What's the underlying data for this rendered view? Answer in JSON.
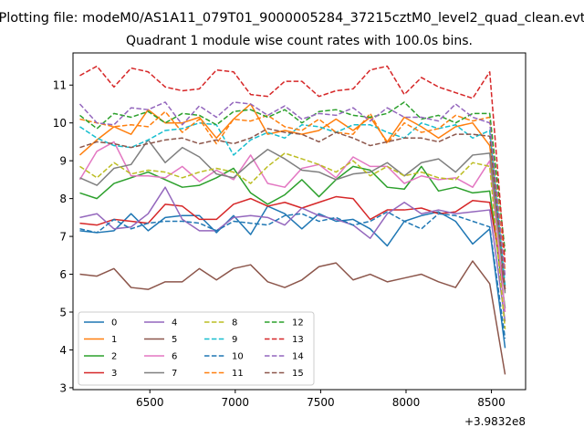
{
  "figure": {
    "suptitle": "Plotting file: modeM0/AS1A11_079T01_9000005284_37215cztM0_level2_quad_clean.evt",
    "x_offset_label": "+3.9832e8"
  },
  "chart_data": {
    "type": "line",
    "title": "Quadrant 1 module wise count rates with 100.0s bins.",
    "xlabel": "",
    "ylabel": "",
    "x_offset": 398320000,
    "xlim": [
      6050,
      8700
    ],
    "ylim": [
      2.95,
      11.85
    ],
    "xticks": [
      6000,
      6500,
      7000,
      7500,
      8000,
      8500
    ],
    "xtick_labels": [
      "6000",
      "6500",
      "7000",
      "7500",
      "8000",
      "8500"
    ],
    "yticks": [
      3,
      4,
      5,
      6,
      7,
      8,
      9,
      10,
      11
    ],
    "ytick_labels": [
      "3",
      "4",
      "5",
      "6",
      "7",
      "8",
      "9",
      "10",
      "11"
    ],
    "grid": false,
    "legend": {
      "position": "lower-left",
      "columns": 4
    },
    "x": [
      6090,
      6190,
      6290,
      6390,
      6490,
      6590,
      6690,
      6790,
      6890,
      6990,
      7090,
      7190,
      7290,
      7390,
      7490,
      7590,
      7690,
      7790,
      7890,
      7990,
      8090,
      8190,
      8290,
      8390,
      8490,
      8580
    ],
    "series": [
      {
        "name": "0",
        "color": "#1f77b4",
        "dash": "solid",
        "values": [
          7.15,
          7.1,
          7.15,
          7.6,
          7.15,
          7.5,
          7.55,
          7.55,
          7.1,
          7.55,
          7.05,
          7.8,
          7.6,
          7.2,
          7.6,
          7.4,
          7.45,
          7.2,
          6.75,
          7.4,
          7.55,
          7.65,
          7.4,
          6.8,
          7.2,
          4.05
        ]
      },
      {
        "name": "1",
        "color": "#ff7f0e",
        "dash": "solid",
        "values": [
          9.15,
          9.55,
          9.9,
          9.7,
          10.35,
          10.0,
          10.0,
          10.15,
          9.6,
          10.1,
          10.5,
          9.7,
          9.8,
          9.7,
          9.8,
          10.1,
          9.8,
          10.15,
          9.5,
          10.15,
          9.9,
          9.6,
          9.9,
          10.0,
          9.4,
          5.6
        ]
      },
      {
        "name": "2",
        "color": "#2ca02c",
        "dash": "solid",
        "values": [
          8.15,
          8.0,
          8.4,
          8.55,
          8.7,
          8.5,
          8.3,
          8.35,
          8.55,
          8.8,
          8.15,
          7.85,
          8.1,
          8.5,
          8.05,
          8.5,
          8.85,
          8.75,
          8.3,
          8.25,
          8.85,
          8.2,
          8.3,
          8.15,
          8.2,
          5.1
        ]
      },
      {
        "name": "3",
        "color": "#d62728",
        "dash": "solid",
        "values": [
          7.35,
          7.3,
          7.45,
          7.4,
          7.35,
          7.85,
          7.8,
          7.45,
          7.45,
          7.85,
          8.0,
          7.8,
          7.9,
          7.75,
          7.9,
          8.05,
          8.0,
          7.45,
          7.7,
          7.7,
          7.75,
          7.6,
          7.65,
          7.95,
          7.9,
          5.55
        ]
      },
      {
        "name": "4",
        "color": "#9467bd",
        "dash": "solid",
        "values": [
          7.5,
          7.6,
          7.2,
          7.25,
          7.6,
          8.3,
          7.45,
          7.15,
          7.15,
          7.5,
          7.55,
          7.5,
          7.3,
          7.75,
          7.55,
          7.45,
          7.3,
          6.95,
          7.6,
          7.9,
          7.6,
          7.7,
          7.6,
          7.65,
          7.7,
          4.75
        ]
      },
      {
        "name": "5",
        "color": "#8c564b",
        "dash": "solid",
        "values": [
          6.0,
          5.95,
          6.15,
          5.65,
          5.6,
          5.8,
          5.8,
          6.15,
          5.85,
          6.15,
          6.25,
          5.8,
          5.65,
          5.85,
          6.2,
          6.3,
          5.85,
          6.0,
          5.8,
          5.9,
          6.0,
          5.8,
          5.65,
          6.35,
          5.75,
          3.35
        ]
      },
      {
        "name": "6",
        "color": "#e377c2",
        "dash": "solid",
        "values": [
          8.5,
          9.25,
          9.5,
          8.6,
          8.6,
          8.55,
          8.85,
          8.45,
          8.75,
          8.5,
          9.15,
          8.4,
          8.3,
          8.8,
          8.9,
          8.55,
          9.1,
          8.85,
          8.85,
          8.4,
          8.6,
          8.5,
          8.55,
          8.3,
          9.0,
          5.0
        ]
      },
      {
        "name": "7",
        "color": "#7f7f7f",
        "dash": "solid",
        "values": [
          8.55,
          8.35,
          8.8,
          8.9,
          9.55,
          8.95,
          9.35,
          9.1,
          8.65,
          8.55,
          8.95,
          9.3,
          9.05,
          8.75,
          8.7,
          8.5,
          8.65,
          8.7,
          8.95,
          8.6,
          8.95,
          9.05,
          8.7,
          9.15,
          9.2,
          5.5
        ]
      },
      {
        "name": "8",
        "color": "#bcbd22",
        "dash": "dashed",
        "values": [
          8.85,
          8.55,
          8.95,
          8.65,
          8.75,
          8.7,
          8.55,
          8.7,
          8.8,
          8.7,
          8.4,
          8.85,
          9.2,
          9.05,
          8.9,
          8.7,
          9.0,
          8.6,
          8.85,
          8.6,
          8.7,
          8.55,
          8.5,
          8.95,
          8.85,
          4.55
        ]
      },
      {
        "name": "9",
        "color": "#17becf",
        "dash": "dashed",
        "values": [
          9.9,
          9.6,
          9.4,
          9.35,
          9.55,
          9.8,
          9.85,
          10.0,
          9.95,
          9.15,
          9.55,
          9.75,
          9.6,
          9.95,
          9.9,
          9.75,
          9.95,
          9.95,
          9.75,
          9.6,
          10.0,
          9.85,
          9.95,
          9.6,
          9.8,
          5.7
        ]
      },
      {
        "name": "10",
        "color": "#1f77b4",
        "dash": "dashed",
        "values": [
          7.2,
          7.1,
          7.45,
          7.2,
          7.35,
          7.4,
          7.4,
          7.35,
          7.15,
          7.4,
          7.35,
          7.3,
          7.55,
          7.6,
          7.4,
          7.5,
          7.3,
          7.4,
          7.65,
          7.4,
          7.2,
          7.6,
          7.55,
          7.4,
          7.25,
          4.3
        ]
      },
      {
        "name": "11",
        "color": "#ff7f0e",
        "dash": "dashed",
        "values": [
          10.1,
          10.0,
          9.9,
          9.95,
          9.9,
          10.3,
          9.75,
          10.1,
          9.45,
          10.1,
          10.05,
          10.2,
          9.9,
          9.8,
          10.1,
          9.75,
          9.7,
          10.25,
          9.45,
          10.0,
          9.75,
          9.85,
          10.2,
          10.05,
          10.15,
          6.1
        ]
      },
      {
        "name": "12",
        "color": "#2ca02c",
        "dash": "dashed",
        "values": [
          10.2,
          9.85,
          10.25,
          10.15,
          10.3,
          10.0,
          10.25,
          10.2,
          9.95,
          10.3,
          10.35,
          10.15,
          10.35,
          10.0,
          10.3,
          10.35,
          10.2,
          10.15,
          10.25,
          10.55,
          10.1,
          10.2,
          10.0,
          10.25,
          10.25,
          6.6
        ]
      },
      {
        "name": "13",
        "color": "#d62728",
        "dash": "dashed",
        "values": [
          11.25,
          11.5,
          10.95,
          11.45,
          11.35,
          10.95,
          10.85,
          10.9,
          11.4,
          11.35,
          10.75,
          10.7,
          11.1,
          11.1,
          10.7,
          10.85,
          10.9,
          11.4,
          11.5,
          10.75,
          11.2,
          10.95,
          10.8,
          10.65,
          11.35,
          6.3
        ]
      },
      {
        "name": "14",
        "color": "#9467bd",
        "dash": "dashed",
        "values": [
          10.5,
          10.0,
          9.95,
          10.4,
          10.35,
          10.55,
          9.95,
          10.45,
          10.15,
          10.55,
          10.5,
          10.2,
          10.45,
          10.1,
          10.25,
          10.2,
          10.4,
          10.05,
          10.4,
          10.15,
          10.15,
          10.05,
          10.5,
          10.15,
          10.0,
          5.95
        ]
      },
      {
        "name": "15",
        "color": "#8c564b",
        "dash": "dashed",
        "values": [
          9.35,
          9.5,
          9.45,
          9.35,
          9.45,
          9.55,
          9.6,
          9.45,
          9.55,
          9.45,
          9.6,
          9.85,
          9.75,
          9.7,
          9.5,
          9.75,
          9.6,
          9.4,
          9.5,
          9.6,
          9.6,
          9.5,
          9.7,
          9.7,
          9.65,
          5.6
        ]
      }
    ]
  }
}
